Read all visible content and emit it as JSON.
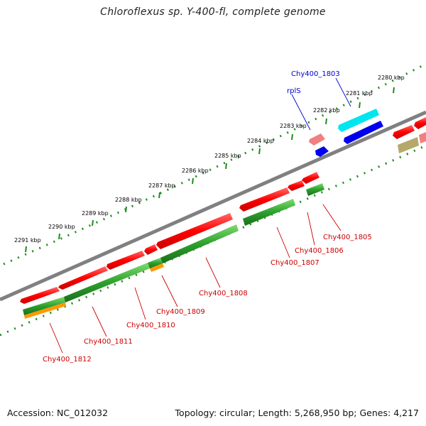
{
  "title": "Chloroflexus sp. Y-400-fl, complete genome",
  "accession": {
    "label": "Accession:",
    "value": "NC_012032"
  },
  "topology": {
    "label": "Topology:",
    "topology_value": "circular",
    "length_label": "Length:",
    "length_value": "5,268,950 bp",
    "genes_label": "Genes:",
    "genes_value": "4,217"
  },
  "kbp_ticks": [
    "2280 kbp",
    "2281 kbp",
    "2282 kbp",
    "2283 kbp",
    "2284 kbp",
    "2285 kbp",
    "2286 kbp",
    "2287 kbp",
    "2288 kbp",
    "2289 kbp",
    "2290 kbp",
    "2291 kbp"
  ],
  "gene_labels_red": [
    "Chy400_1805",
    "Chy400_1806",
    "Chy400_1807",
    "Chy400_1808",
    "Chy400_1809",
    "Chy400_1810",
    "Chy400_1811",
    "Chy400_1812"
  ],
  "gene_labels_blue": [
    "Chy400_1803",
    "rplS"
  ],
  "colors": {
    "cds": "#ff0000",
    "cds_light": "#f08080",
    "gene_green": "#2ca02c",
    "gene_orange": "#ff9900",
    "gene_cyan": "#00e5ee",
    "gene_blue": "#0000ee",
    "gene_khaki": "#b5a96a",
    "backbone": "#808080",
    "tick_green": "#1e8c1e",
    "label_red": "#cc0000",
    "label_blue": "#0000cc"
  }
}
